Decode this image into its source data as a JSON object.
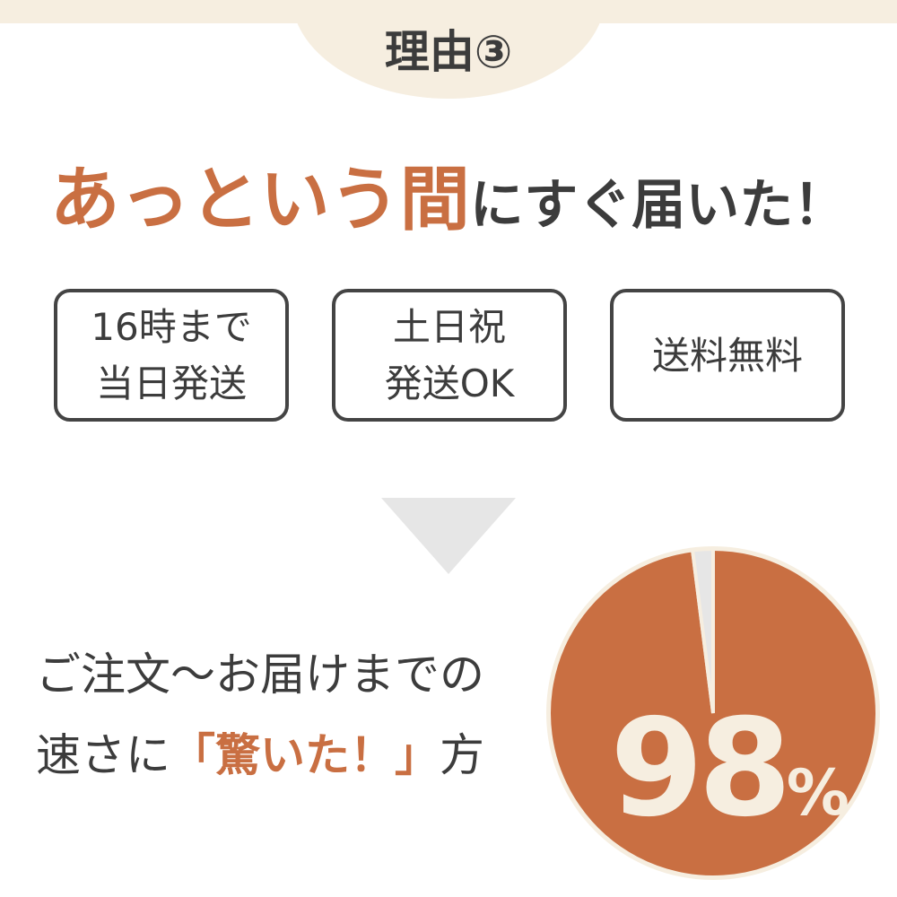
{
  "header": {
    "title": "理由③"
  },
  "headline": {
    "highlight": "あっという間",
    "rest": "にすぐ届いた！"
  },
  "features": [
    {
      "line1": "16時まで",
      "line2": "当日発送"
    },
    {
      "line1": "土日祝",
      "line2": "発送OK"
    },
    {
      "line1": "送料無料",
      "line2": ""
    }
  ],
  "statement": {
    "line1": "ご注文〜お届けまでの",
    "line2_pre": "速さに",
    "line2_em": "「驚いた！」",
    "line2_post": "方"
  },
  "colors": {
    "accent": "#c96f42",
    "cream": "#f6eee0",
    "text": "#3c3c3c",
    "gray": "#e6e6e6"
  },
  "chart_data": {
    "type": "pie",
    "values": [
      98,
      2
    ],
    "colors": [
      "#c96f42",
      "#e6e6e6"
    ],
    "label_value": "98",
    "label_unit": "%"
  }
}
